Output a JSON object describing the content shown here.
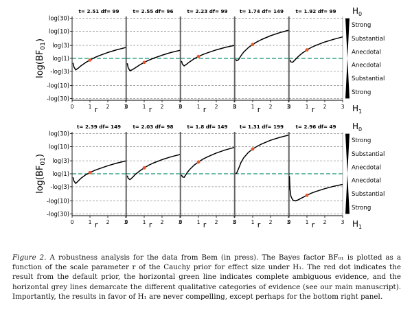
{
  "chart_data": {
    "type": "line",
    "xlabel": "r",
    "ylabel_main": "log(BF",
    "ylabel_sub": "01",
    "ylabel_end": ")",
    "xlim": [
      0,
      3
    ],
    "xticks": [
      "0",
      "1",
      "2",
      "3"
    ],
    "yticks": [
      "log(30)",
      "log(10)",
      "log(3)",
      "log(1)",
      "-log(3)",
      "-log(10)",
      "-log(30)"
    ],
    "ytick_values": [
      3.401,
      2.303,
      1.099,
      0,
      -1.099,
      -2.303,
      -3.401
    ],
    "ylim": [
      -3.55,
      3.55
    ],
    "h0_label": "H",
    "h0_sub": "0",
    "h1_label": "H",
    "h1_sub": "1",
    "evidence_labels": [
      "Strong",
      "Substantial",
      "Anecdotal",
      "Anecdotal",
      "Substantial",
      "Strong"
    ],
    "colors": {
      "curve": "#000000",
      "dot": "#e8542a",
      "reference": "#3aa58a",
      "grid": "#9a9a9a"
    },
    "rows": [
      {
        "panels": [
          {
            "title": "t= 2.51 df= 99",
            "r": [
              0.05,
              0.1,
              0.2,
              0.35,
              0.5,
              0.75,
              1,
              1.25,
              1.5,
              2,
              2.5,
              3
            ],
            "y": [
              -0.38,
              -0.72,
              -0.98,
              -0.82,
              -0.62,
              -0.36,
              -0.14,
              0.06,
              0.22,
              0.5,
              0.73,
              0.92
            ],
            "dot_r": 1,
            "dot_y": -0.14
          },
          {
            "title": "t= 2.55 df= 96",
            "r": [
              0.05,
              0.1,
              0.2,
              0.35,
              0.5,
              0.75,
              1,
              1.25,
              1.5,
              2,
              2.5,
              3
            ],
            "y": [
              -0.42,
              -0.78,
              -1.05,
              -0.95,
              -0.8,
              -0.55,
              -0.34,
              -0.16,
              0,
              0.27,
              0.5,
              0.68
            ],
            "dot_r": 1,
            "dot_y": -0.34
          },
          {
            "title": "t= 2.23 df= 99",
            "r": [
              0.05,
              0.1,
              0.2,
              0.35,
              0.5,
              0.75,
              1,
              1.25,
              1.5,
              2,
              2.5,
              3
            ],
            "y": [
              -0.22,
              -0.48,
              -0.64,
              -0.48,
              -0.3,
              -0.04,
              0.16,
              0.33,
              0.47,
              0.72,
              0.93,
              1.1
            ],
            "dot_r": 1,
            "dot_y": 0.16
          },
          {
            "title": "t= 1.74 df= 149",
            "r": [
              0.05,
              0.1,
              0.2,
              0.35,
              0.5,
              0.75,
              1,
              1.25,
              1.5,
              2,
              2.5,
              3
            ],
            "y": [
              -0.08,
              -0.2,
              -0.12,
              0.24,
              0.54,
              0.9,
              1.18,
              1.41,
              1.6,
              1.92,
              2.17,
              2.38
            ],
            "dot_r": 1,
            "dot_y": 1.18
          },
          {
            "title": "t= 1.92 df= 99",
            "r": [
              0.05,
              0.1,
              0.2,
              0.35,
              0.5,
              0.75,
              1,
              1.25,
              1.5,
              2,
              2.5,
              3
            ],
            "y": [
              -0.12,
              -0.3,
              -0.33,
              -0.1,
              0.14,
              0.46,
              0.72,
              0.93,
              1.1,
              1.39,
              1.62,
              1.82
            ],
            "dot_r": 1,
            "dot_y": 0.72
          }
        ]
      },
      {
        "panels": [
          {
            "title": "t= 2.39 df= 149",
            "r": [
              0.05,
              0.1,
              0.2,
              0.35,
              0.5,
              0.75,
              1,
              1.25,
              1.5,
              2,
              2.5,
              3
            ],
            "y": [
              -0.3,
              -0.6,
              -0.82,
              -0.6,
              -0.38,
              -0.1,
              0.1,
              0.28,
              0.42,
              0.68,
              0.9,
              1.08
            ],
            "dot_r": 1,
            "dot_y": 0.1
          },
          {
            "title": "t= 2.03 df= 98",
            "r": [
              0.05,
              0.1,
              0.2,
              0.35,
              0.5,
              0.75,
              1,
              1.25,
              1.5,
              2,
              2.5,
              3
            ],
            "y": [
              -0.16,
              -0.38,
              -0.5,
              -0.3,
              -0.06,
              0.24,
              0.5,
              0.72,
              0.9,
              1.2,
              1.44,
              1.63
            ],
            "dot_r": 1,
            "dot_y": 0.5
          },
          {
            "title": "t= 1.8 df= 149",
            "r": [
              0.05,
              0.1,
              0.2,
              0.35,
              0.5,
              0.75,
              1,
              1.25,
              1.5,
              2,
              2.5,
              3
            ],
            "y": [
              -0.1,
              -0.26,
              -0.3,
              0.05,
              0.35,
              0.72,
              1.0,
              1.24,
              1.43,
              1.76,
              2.02,
              2.23
            ],
            "dot_r": 1,
            "dot_y": 1.0
          },
          {
            "title": "t= 1.31 df= 199",
            "r": [
              0.05,
              0.1,
              0.2,
              0.35,
              0.5,
              0.75,
              1,
              1.25,
              1.5,
              2,
              2.5,
              3
            ],
            "y": [
              0.02,
              0.05,
              0.4,
              0.98,
              1.36,
              1.8,
              2.1,
              2.33,
              2.52,
              2.84,
              3.08,
              3.27
            ],
            "dot_r": 1,
            "dot_y": 2.1
          },
          {
            "title": "t= 2.96 df= 49",
            "r": [
              0.02,
              0.05,
              0.1,
              0.2,
              0.35,
              0.5,
              0.75,
              1,
              1.25,
              1.5,
              2,
              2.5,
              3
            ],
            "y": [
              -0.2,
              -1.3,
              -1.9,
              -2.22,
              -2.3,
              -2.22,
              -2.02,
              -1.82,
              -1.64,
              -1.5,
              -1.26,
              -1.06,
              -0.9
            ],
            "dot_r": 1,
            "dot_y": -1.82
          }
        ]
      }
    ]
  },
  "caption": {
    "lead": "Figure 2.",
    "body": "A robustness analysis for the data from Bem (in press). The Bayes factor BF₀₁ is plotted as a function of the scale parameter r of the Cauchy prior for effect size under H₁. The red dot indicates the result from the default prior, the horizontal green line indicates complete ambiguous evidence, and the horizontal grey lines demarcate the different qualitative categories of evidence (see our main manuscript). Importantly, the results in favor of H₁ are never compelling, except perhaps for the bottom right panel."
  }
}
